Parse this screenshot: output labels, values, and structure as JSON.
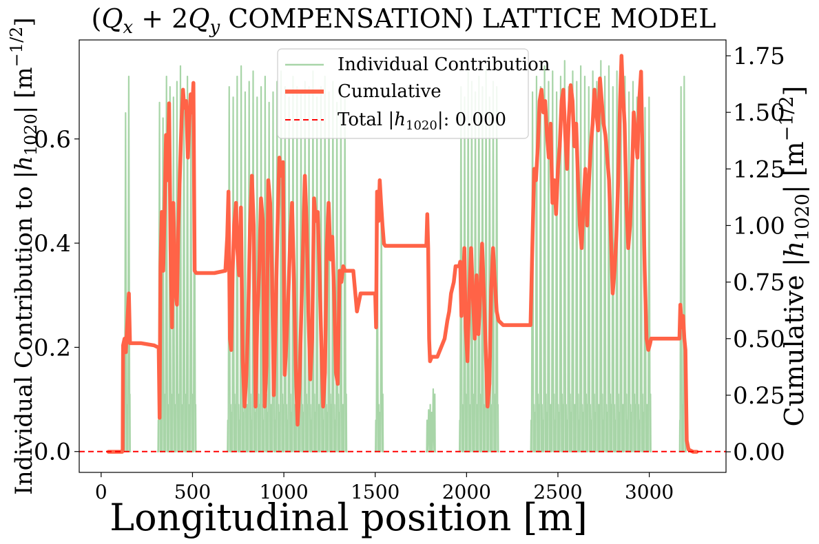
{
  "chart_data": {
    "type": "line",
    "title": {
      "open": "(",
      "q": "Q",
      "sub_x": "x",
      "plus_two": " + 2",
      "sub_y": "y",
      "rest": " COMPENSATION) LATTICE MODEL"
    },
    "xlabel": "Longitudinal position [m]",
    "ylabel_left": {
      "text": "Individual Contribution to |",
      "h": "h",
      "sub": "1020",
      "close": "| [m",
      "sup": "−1/2",
      "end": "]"
    },
    "ylabel_right": {
      "text": "Cumulative |",
      "h": "h",
      "sub": "1020",
      "close": "| [m",
      "sup": "−1/2",
      "end": "]"
    },
    "xlim": [
      -120,
      3420
    ],
    "ylim_left": [
      -0.04,
      0.79
    ],
    "ylim_right": [
      -0.091,
      1.82
    ],
    "x_ticks": [
      0,
      500,
      1000,
      1500,
      2000,
      2500,
      3000
    ],
    "y_ticks_left": [
      0.0,
      0.2,
      0.4,
      0.6
    ],
    "y_ticks_left_labels": [
      "0.0",
      "0.2",
      "0.4",
      "0.6"
    ],
    "y_ticks_right": [
      0.0,
      0.25,
      0.5,
      0.75,
      1.0,
      1.25,
      1.5,
      1.75
    ],
    "y_ticks_right_labels": [
      "0.00",
      "0.25",
      "0.50",
      "0.75",
      "1.00",
      "1.25",
      "1.50",
      "1.75"
    ],
    "legend": {
      "placement": "top-center",
      "entries": [
        {
          "label": "Individual Contribution",
          "color": "#a8d5a8",
          "style": "solid-thin"
        },
        {
          "label": "Cumulative",
          "color": "#ff6347",
          "style": "solid-thick"
        },
        {
          "label_prefix": "Total |",
          "h": "h",
          "sub": "1020",
          "label_suffix": "|: 0.000",
          "color": "#ff0000",
          "style": "dashed"
        }
      ]
    },
    "total_line_value": 0.0,
    "series": [
      {
        "name": "Individual Contribution",
        "color": "#a8d5a8",
        "axis": "left",
        "spike_regions": [
          {
            "x_start": 125,
            "x_end": 160,
            "peaks": [
              0.65,
              0.72
            ]
          },
          {
            "x_start": 310,
            "x_end": 520,
            "peaks": [
              0.67,
              0.64,
              0.72,
              0.7,
              0.68,
              0.71,
              0.74,
              0.69,
              0.72,
              0.67,
              0.62
            ]
          },
          {
            "x_start": 690,
            "x_end": 1345,
            "peaks": [
              0.7,
              0.68,
              0.72,
              0.74,
              0.69,
              0.71,
              0.73,
              0.68,
              0.7,
              0.72,
              0.67,
              0.69,
              0.71,
              0.73,
              0.7,
              0.68,
              0.72,
              0.7,
              0.69,
              0.71,
              0.7,
              0.73,
              0.68,
              0.7,
              0.72,
              0.69,
              0.71,
              0.67,
              0.7,
              0.68
            ]
          },
          {
            "x_start": 1500,
            "x_end": 1545,
            "peaks": [
              0.45,
              0.5
            ]
          },
          {
            "x_start": 1780,
            "x_end": 1830,
            "peaks": [
              0.08,
              0.12
            ]
          },
          {
            "x_start": 1960,
            "x_end": 2175,
            "peaks": [
              0.7,
              0.68,
              0.73,
              0.71,
              0.69,
              0.72,
              0.7,
              0.74,
              0.68,
              0.71,
              0.7
            ]
          },
          {
            "x_start": 2350,
            "x_end": 3010,
            "peaks": [
              0.69,
              0.72,
              0.7,
              0.74,
              0.71,
              0.73,
              0.69,
              0.72,
              0.75,
              0.7,
              0.73,
              0.71,
              0.74,
              0.72,
              0.7,
              0.73,
              0.71,
              0.75,
              0.72,
              0.74,
              0.7,
              0.73,
              0.71,
              0.72,
              0.69,
              0.71,
              0.68,
              0.7,
              0.66,
              0.68
            ]
          },
          {
            "x_start": 3165,
            "x_end": 3200,
            "peaks": [
              0.7,
              0.72
            ]
          }
        ]
      },
      {
        "name": "Cumulative",
        "color": "#ff6347",
        "axis": "right",
        "points": [
          [
            40,
            0.0
          ],
          [
            115,
            0.0
          ],
          [
            118,
            0.01
          ],
          [
            120,
            0.47
          ],
          [
            128,
            0.5
          ],
          [
            135,
            0.44
          ],
          [
            145,
            0.6
          ],
          [
            152,
            0.7
          ],
          [
            158,
            0.48
          ],
          [
            170,
            0.48
          ],
          [
            220,
            0.48
          ],
          [
            290,
            0.47
          ],
          [
            315,
            0.46
          ],
          [
            320,
            0.15
          ],
          [
            325,
            0.82
          ],
          [
            332,
            1.06
          ],
          [
            340,
            0.8
          ],
          [
            348,
            1.08
          ],
          [
            355,
            1.4
          ],
          [
            362,
            1.2
          ],
          [
            372,
            1.54
          ],
          [
            380,
            0.9
          ],
          [
            388,
            0.55
          ],
          [
            395,
            1.1
          ],
          [
            405,
            0.72
          ],
          [
            415,
            0.65
          ],
          [
            422,
            0.98
          ],
          [
            432,
            1.25
          ],
          [
            440,
            1.46
          ],
          [
            448,
            1.6
          ],
          [
            455,
            1.52
          ],
          [
            465,
            1.55
          ],
          [
            475,
            1.3
          ],
          [
            482,
            1.45
          ],
          [
            490,
            1.58
          ],
          [
            498,
            1.5
          ],
          [
            505,
            1.63
          ],
          [
            512,
            0.8
          ],
          [
            520,
            0.79
          ],
          [
            560,
            0.79
          ],
          [
            620,
            0.79
          ],
          [
            680,
            0.8
          ],
          [
            690,
            0.95
          ],
          [
            697,
            1.15
          ],
          [
            705,
            0.5
          ],
          [
            712,
            0.45
          ],
          [
            720,
            0.8
          ],
          [
            728,
            1.0
          ],
          [
            738,
            1.1
          ],
          [
            745,
            0.9
          ],
          [
            755,
            0.78
          ],
          [
            765,
            1.08
          ],
          [
            775,
            0.4
          ],
          [
            785,
            0.2
          ],
          [
            795,
            0.34
          ],
          [
            805,
            0.6
          ],
          [
            815,
            1.0
          ],
          [
            825,
            1.22
          ],
          [
            835,
            1.0
          ],
          [
            845,
            0.2
          ],
          [
            855,
            0.6
          ],
          [
            865,
            0.8
          ],
          [
            875,
            1.12
          ],
          [
            885,
            1.02
          ],
          [
            895,
            0.2
          ],
          [
            905,
            0.38
          ],
          [
            915,
            1.2
          ],
          [
            925,
            1.1
          ],
          [
            935,
            0.8
          ],
          [
            945,
            0.25
          ],
          [
            955,
            0.6
          ],
          [
            965,
            0.98
          ],
          [
            975,
            1.3
          ],
          [
            985,
            1.22
          ],
          [
            995,
            1.28
          ],
          [
            1005,
            0.34
          ],
          [
            1015,
            0.5
          ],
          [
            1025,
            0.7
          ],
          [
            1035,
            0.95
          ],
          [
            1045,
            1.1
          ],
          [
            1055,
            0.76
          ],
          [
            1065,
            0.38
          ],
          [
            1075,
            0.12
          ],
          [
            1085,
            0.28
          ],
          [
            1095,
            0.6
          ],
          [
            1105,
            0.9
          ],
          [
            1115,
            1.22
          ],
          [
            1125,
            1.0
          ],
          [
            1135,
            0.6
          ],
          [
            1145,
            0.32
          ],
          [
            1155,
            0.5
          ],
          [
            1165,
            1.12
          ],
          [
            1175,
            1.02
          ],
          [
            1185,
            1.06
          ],
          [
            1195,
            0.8
          ],
          [
            1205,
            0.48
          ],
          [
            1215,
            0.2
          ],
          [
            1225,
            0.35
          ],
          [
            1235,
            0.9
          ],
          [
            1245,
            1.1
          ],
          [
            1255,
            0.85
          ],
          [
            1265,
            0.95
          ],
          [
            1275,
            0.7
          ],
          [
            1285,
            0.35
          ],
          [
            1295,
            0.3
          ],
          [
            1305,
            0.8
          ],
          [
            1315,
            0.75
          ],
          [
            1325,
            0.82
          ],
          [
            1335,
            0.8
          ],
          [
            1345,
            0.8
          ],
          [
            1380,
            0.8
          ],
          [
            1400,
            0.62
          ],
          [
            1420,
            0.7
          ],
          [
            1440,
            0.7
          ],
          [
            1490,
            0.7
          ],
          [
            1500,
            0.7
          ],
          [
            1505,
            0.55
          ],
          [
            1510,
            1.15
          ],
          [
            1518,
            1.02
          ],
          [
            1525,
            1.2
          ],
          [
            1532,
            1.1
          ],
          [
            1540,
            1.0
          ],
          [
            1548,
            0.92
          ],
          [
            1555,
            0.91
          ],
          [
            1600,
            0.91
          ],
          [
            1680,
            0.91
          ],
          [
            1760,
            0.91
          ],
          [
            1780,
            0.91
          ],
          [
            1785,
            1.05
          ],
          [
            1790,
            0.9
          ],
          [
            1795,
            0.5
          ],
          [
            1800,
            0.4
          ],
          [
            1810,
            0.42
          ],
          [
            1820,
            0.42
          ],
          [
            1840,
            0.42
          ],
          [
            1880,
            0.5
          ],
          [
            1895,
            0.58
          ],
          [
            1905,
            0.62
          ],
          [
            1915,
            0.7
          ],
          [
            1930,
            0.75
          ],
          [
            1940,
            0.82
          ],
          [
            1950,
            0.82
          ],
          [
            1960,
            0.82
          ],
          [
            1965,
            0.84
          ],
          [
            1972,
            0.6
          ],
          [
            1980,
            0.7
          ],
          [
            1988,
            0.9
          ],
          [
            1995,
            0.55
          ],
          [
            2005,
            0.4
          ],
          [
            2015,
            0.7
          ],
          [
            2025,
            0.9
          ],
          [
            2035,
            0.68
          ],
          [
            2045,
            0.5
          ],
          [
            2055,
            0.78
          ],
          [
            2065,
            0.52
          ],
          [
            2075,
            0.7
          ],
          [
            2085,
            0.92
          ],
          [
            2095,
            0.7
          ],
          [
            2105,
            0.45
          ],
          [
            2115,
            0.2
          ],
          [
            2125,
            0.3
          ],
          [
            2135,
            0.72
          ],
          [
            2145,
            0.9
          ],
          [
            2155,
            0.75
          ],
          [
            2165,
            0.62
          ],
          [
            2175,
            0.58
          ],
          [
            2200,
            0.56
          ],
          [
            2300,
            0.56
          ],
          [
            2350,
            0.56
          ],
          [
            2360,
            0.9
          ],
          [
            2370,
            1.25
          ],
          [
            2380,
            1.2
          ],
          [
            2390,
            1.35
          ],
          [
            2400,
            1.55
          ],
          [
            2410,
            1.6
          ],
          [
            2420,
            1.5
          ],
          [
            2430,
            1.55
          ],
          [
            2440,
            1.4
          ],
          [
            2450,
            1.3
          ],
          [
            2460,
            1.45
          ],
          [
            2470,
            1.1
          ],
          [
            2480,
            1.2
          ],
          [
            2490,
            1.05
          ],
          [
            2500,
            1.25
          ],
          [
            2510,
            1.35
          ],
          [
            2520,
            1.55
          ],
          [
            2530,
            1.6
          ],
          [
            2540,
            1.4
          ],
          [
            2550,
            1.25
          ],
          [
            2560,
            1.48
          ],
          [
            2570,
            1.62
          ],
          [
            2580,
            1.55
          ],
          [
            2590,
            1.35
          ],
          [
            2600,
            1.45
          ],
          [
            2610,
            1.2
          ],
          [
            2620,
            1.0
          ],
          [
            2630,
            0.9
          ],
          [
            2640,
            1.1
          ],
          [
            2650,
            1.25
          ],
          [
            2660,
            1.0
          ],
          [
            2670,
            1.2
          ],
          [
            2680,
            1.35
          ],
          [
            2690,
            1.45
          ],
          [
            2700,
            1.6
          ],
          [
            2710,
            1.5
          ],
          [
            2720,
            1.42
          ],
          [
            2730,
            1.65
          ],
          [
            2740,
            1.55
          ],
          [
            2750,
            1.45
          ],
          [
            2760,
            1.4
          ],
          [
            2770,
            1.3
          ],
          [
            2780,
            1.2
          ],
          [
            2790,
            0.95
          ],
          [
            2800,
            0.7
          ],
          [
            2810,
            0.8
          ],
          [
            2820,
            0.95
          ],
          [
            2830,
            1.2
          ],
          [
            2840,
            1.55
          ],
          [
            2848,
            1.75
          ],
          [
            2855,
            1.6
          ],
          [
            2865,
            1.45
          ],
          [
            2875,
            1.1
          ],
          [
            2885,
            0.9
          ],
          [
            2895,
            1.0
          ],
          [
            2905,
            1.2
          ],
          [
            2915,
            1.5
          ],
          [
            2925,
            1.4
          ],
          [
            2935,
            1.3
          ],
          [
            2945,
            1.55
          ],
          [
            2955,
            1.68
          ],
          [
            2965,
            1.2
          ],
          [
            2975,
            0.8
          ],
          [
            2985,
            0.5
          ],
          [
            2995,
            0.45
          ],
          [
            3005,
            0.48
          ],
          [
            3010,
            0.5
          ],
          [
            3060,
            0.5
          ],
          [
            3120,
            0.5
          ],
          [
            3165,
            0.5
          ],
          [
            3170,
            0.65
          ],
          [
            3178,
            0.55
          ],
          [
            3185,
            0.6
          ],
          [
            3192,
            0.5
          ],
          [
            3198,
            0.45
          ],
          [
            3205,
            0.05
          ],
          [
            3215,
            0.01
          ],
          [
            3240,
            0.0
          ],
          [
            3260,
            0.0
          ]
        ]
      }
    ]
  }
}
